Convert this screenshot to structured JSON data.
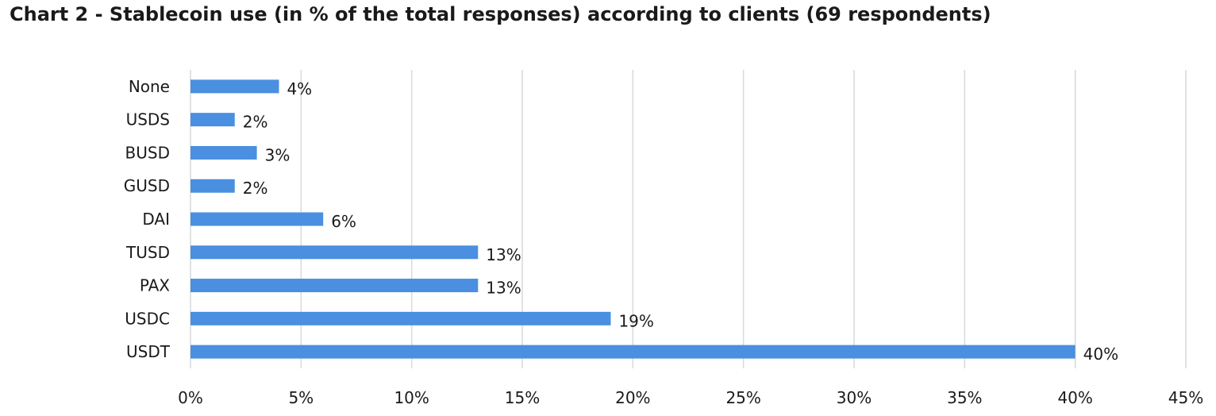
{
  "chart_data": {
    "type": "bar",
    "orientation": "horizontal",
    "title": "Chart 2 - Stablecoin use (in % of the total responses) according to clients (69 respondents)",
    "xlabel": "",
    "ylabel": "",
    "categories": [
      "None",
      "USDS",
      "BUSD",
      "GUSD",
      "DAI",
      "TUSD",
      "PAX",
      "USDC",
      "USDT"
    ],
    "values": [
      4,
      2,
      3,
      2,
      6,
      13,
      13,
      19,
      40
    ],
    "data_labels": [
      "4%",
      "2%",
      "3%",
      "2%",
      "6%",
      "13%",
      "13%",
      "19%",
      "40%"
    ],
    "ticks": [
      0,
      5,
      10,
      15,
      20,
      25,
      30,
      35,
      40,
      45
    ],
    "tick_labels": [
      "0%",
      "5%",
      "10%",
      "15%",
      "20%",
      "25%",
      "30%",
      "35%",
      "40%",
      "45%"
    ],
    "xlim": [
      0,
      45
    ],
    "grid": true,
    "legend": "none",
    "bar_color": "#4a8fe0",
    "grid_color": "#d9d9d9"
  }
}
